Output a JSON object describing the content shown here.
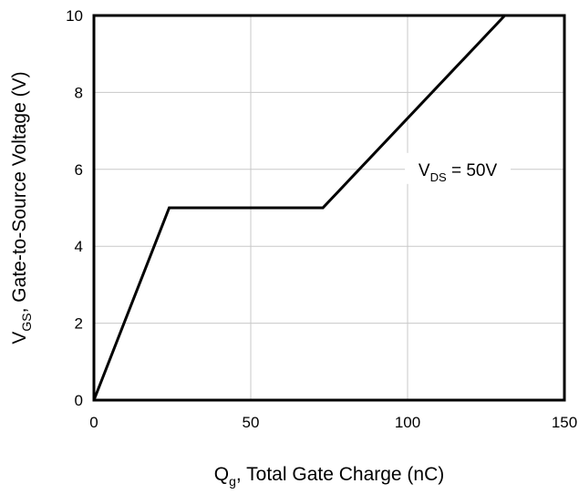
{
  "chart_data": {
    "type": "line",
    "xlabel": {
      "main": "Q",
      "sub": "g",
      "rest": ", Total Gate Charge (nC)"
    },
    "ylabel": {
      "main": "V",
      "sub": "GS",
      "rest": ", Gate-to-Source Voltage (V)"
    },
    "xlim": [
      0,
      150
    ],
    "ylim": [
      0,
      10
    ],
    "xticks": [
      "0",
      "50",
      "100",
      "150"
    ],
    "yticks": [
      "0",
      "2",
      "4",
      "6",
      "8",
      "10"
    ],
    "grid": true,
    "series": [
      {
        "x": [
          0,
          24,
          73,
          131
        ],
        "y": [
          0,
          5,
          5,
          10
        ],
        "color": "#000000"
      }
    ],
    "annotations": [
      {
        "main": "V",
        "sub": "DS",
        "rest": " = 50V",
        "x": 116,
        "y": 6
      }
    ]
  }
}
